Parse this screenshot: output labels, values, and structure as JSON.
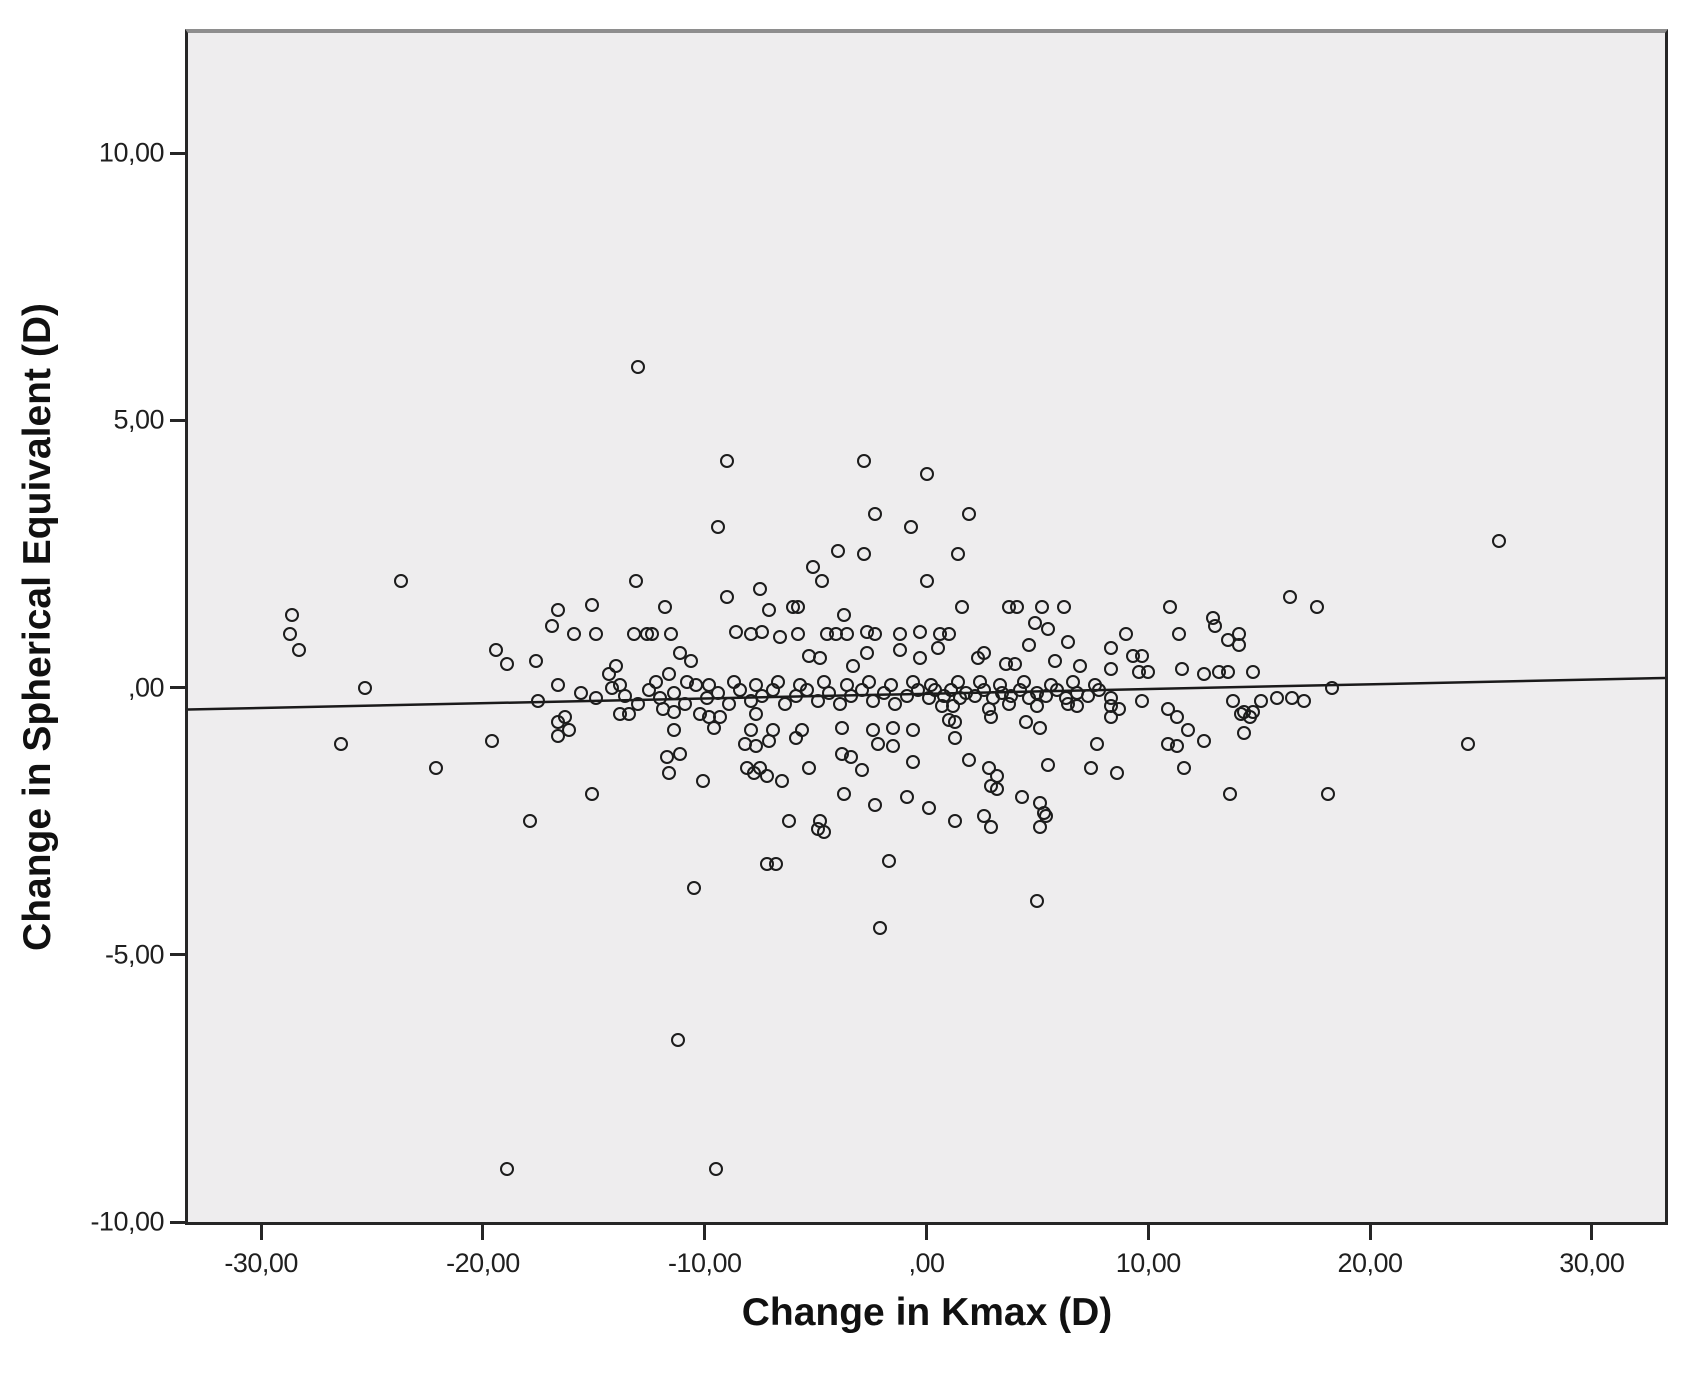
{
  "figure": {
    "plot_bg_color": "#eeedee",
    "frame_color": "#262626",
    "frame_top_color": "#8e8e8e",
    "marker_color": "#1c1c1c",
    "fit_line_color": "#1a1a1a",
    "tick_color": "#262626"
  },
  "chart_data": {
    "type": "scatter",
    "title": "",
    "xlabel": "Change in Kmax (D)",
    "ylabel": "Change in Spherical Equivalent (D)",
    "xlim": [
      -33.3,
      33.3
    ],
    "ylim": [
      -10,
      12.25
    ],
    "grid": false,
    "legend": null,
    "x_ticks": [
      {
        "value": -30,
        "label": "-30,00"
      },
      {
        "value": -20,
        "label": "-20,00"
      },
      {
        "value": -10,
        "label": "-10,00"
      },
      {
        "value": 0,
        "label": ",00"
      },
      {
        "value": 10,
        "label": "10,00"
      },
      {
        "value": 20,
        "label": "20,00"
      },
      {
        "value": 30,
        "label": "30,00"
      }
    ],
    "y_ticks": [
      {
        "value": 10,
        "label": "10,00"
      },
      {
        "value": 5,
        "label": "5,00"
      },
      {
        "value": 0,
        "label": ",00"
      },
      {
        "value": -5,
        "label": "-5,00"
      },
      {
        "value": -10,
        "label": "-10,00"
      }
    ],
    "fit_line": {
      "x1": -33.3,
      "y1": -0.41,
      "x2": 33.3,
      "y2": 0.18
    },
    "points": [
      [
        -23.7,
        2.0
      ],
      [
        -13,
        6.0
      ],
      [
        -9,
        4.25
      ],
      [
        -2.8,
        4.25
      ],
      [
        0,
        4.0
      ],
      [
        -9.4,
        3.0
      ],
      [
        -2.3,
        3.25
      ],
      [
        -0.7,
        3.0
      ],
      [
        1.9,
        3.25
      ],
      [
        -4,
        2.55
      ],
      [
        -2.8,
        2.5
      ],
      [
        1.4,
        2.5
      ],
      [
        -5.1,
        2.25
      ],
      [
        -4.7,
        2.0
      ],
      [
        0,
        2.0
      ],
      [
        -13.1,
        2.0
      ],
      [
        25.8,
        2.75
      ],
      [
        -15.1,
        1.55
      ],
      [
        -11.8,
        1.5
      ],
      [
        -9,
        1.7
      ],
      [
        -7.5,
        1.85
      ],
      [
        -7.1,
        1.45
      ],
      [
        -6,
        1.5
      ],
      [
        -5.8,
        1.5
      ],
      [
        -3.7,
        1.35
      ],
      [
        -16.6,
        1.45
      ],
      [
        -28.6,
        1.35
      ],
      [
        -16.9,
        1.15
      ],
      [
        1.6,
        1.5
      ],
      [
        3.7,
        1.5
      ],
      [
        4.1,
        1.5
      ],
      [
        5.2,
        1.5
      ],
      [
        6.2,
        1.5
      ],
      [
        11,
        1.5
      ],
      [
        12.9,
        1.3
      ],
      [
        16.4,
        1.7
      ],
      [
        17.6,
        1.5
      ],
      [
        4.9,
        1.2
      ],
      [
        5.5,
        1.1
      ],
      [
        13,
        1.15
      ],
      [
        -15.9,
        1.0
      ],
      [
        -14.9,
        1.0
      ],
      [
        -13.2,
        1.0
      ],
      [
        -12.6,
        1.0
      ],
      [
        -12.4,
        1.0
      ],
      [
        -11.5,
        1.0
      ],
      [
        -8.6,
        1.05
      ],
      [
        -7.9,
        1.0
      ],
      [
        -7.4,
        1.05
      ],
      [
        -6.6,
        0.95
      ],
      [
        -5.8,
        1.0
      ],
      [
        -4.5,
        1.0
      ],
      [
        -4.1,
        1.0
      ],
      [
        -3.6,
        1.0
      ],
      [
        -2.7,
        1.05
      ],
      [
        -2.3,
        1.0
      ],
      [
        -1.2,
        1.0
      ],
      [
        -0.3,
        1.05
      ],
      [
        0.6,
        1.0
      ],
      [
        1.0,
        1.0
      ],
      [
        9,
        1.0
      ],
      [
        11.4,
        1.0
      ],
      [
        14.1,
        1.0
      ],
      [
        -28.7,
        1.0
      ],
      [
        -28.3,
        0.7
      ],
      [
        -19.4,
        0.7
      ],
      [
        -18.9,
        0.45
      ],
      [
        -17.6,
        0.5
      ],
      [
        -11.1,
        0.65
      ],
      [
        -10.6,
        0.5
      ],
      [
        -2.7,
        0.65
      ],
      [
        -1.2,
        0.7
      ],
      [
        -0.3,
        0.55
      ],
      [
        -5.3,
        0.6
      ],
      [
        -4.8,
        0.55
      ],
      [
        -3.3,
        0.4
      ],
      [
        -14,
        0.4
      ],
      [
        -14.3,
        0.25
      ],
      [
        -11.6,
        0.25
      ],
      [
        0.5,
        0.75
      ],
      [
        2.3,
        0.55
      ],
      [
        2.6,
        0.65
      ],
      [
        4.6,
        0.8
      ],
      [
        6.4,
        0.85
      ],
      [
        8.3,
        0.75
      ],
      [
        9.3,
        0.6
      ],
      [
        9.7,
        0.6
      ],
      [
        14.1,
        0.8
      ],
      [
        13.6,
        0.9
      ],
      [
        3.6,
        0.45
      ],
      [
        4.0,
        0.45
      ],
      [
        5.8,
        0.5
      ],
      [
        6.9,
        0.4
      ],
      [
        8.3,
        0.35
      ],
      [
        9.6,
        0.3
      ],
      [
        10.0,
        0.3
      ],
      [
        11.5,
        0.35
      ],
      [
        12.5,
        0.25
      ],
      [
        13.2,
        0.3
      ],
      [
        13.6,
        0.3
      ],
      [
        14.7,
        0.3
      ],
      [
        -15.6,
        -0.1
      ],
      [
        -14.9,
        -0.2
      ],
      [
        -14.2,
        0.0
      ],
      [
        -13.6,
        -0.15
      ],
      [
        -13.0,
        -0.3
      ],
      [
        -12.5,
        -0.05
      ],
      [
        -12.0,
        -0.2
      ],
      [
        -11.4,
        -0.1
      ],
      [
        -10.9,
        -0.3
      ],
      [
        -10.4,
        0.05
      ],
      [
        -9.9,
        -0.2
      ],
      [
        -9.4,
        -0.1
      ],
      [
        -8.9,
        -0.3
      ],
      [
        -8.4,
        -0.05
      ],
      [
        -7.9,
        -0.25
      ],
      [
        -7.4,
        -0.15
      ],
      [
        -6.9,
        -0.05
      ],
      [
        -6.4,
        -0.3
      ],
      [
        -5.9,
        -0.15
      ],
      [
        -5.4,
        -0.05
      ],
      [
        -4.9,
        -0.25
      ],
      [
        -4.4,
        -0.1
      ],
      [
        -3.9,
        -0.3
      ],
      [
        -3.4,
        -0.15
      ],
      [
        -2.9,
        -0.05
      ],
      [
        -2.4,
        -0.25
      ],
      [
        -1.9,
        -0.1
      ],
      [
        -1.4,
        -0.3
      ],
      [
        -0.9,
        -0.15
      ],
      [
        -0.4,
        -0.05
      ],
      [
        0.1,
        -0.2
      ],
      [
        0.4,
        -0.05
      ],
      [
        0.8,
        -0.15
      ],
      [
        1.1,
        -0.05
      ],
      [
        1.5,
        -0.2
      ],
      [
        1.8,
        -0.1
      ],
      [
        2.2,
        -0.15
      ],
      [
        2.6,
        -0.05
      ],
      [
        3.0,
        -0.2
      ],
      [
        3.4,
        -0.1
      ],
      [
        3.8,
        -0.15
      ],
      [
        4.2,
        -0.05
      ],
      [
        4.6,
        -0.2
      ],
      [
        5.0,
        -0.1
      ],
      [
        5.4,
        -0.15
      ],
      [
        5.9,
        -0.05
      ],
      [
        6.3,
        -0.2
      ],
      [
        6.8,
        -0.1
      ],
      [
        7.3,
        -0.15
      ],
      [
        7.8,
        -0.05
      ],
      [
        8.3,
        -0.2
      ],
      [
        0.2,
        0.05
      ],
      [
        -0.6,
        0.1
      ],
      [
        1.4,
        0.1
      ],
      [
        2.4,
        0.1
      ],
      [
        3.3,
        0.05
      ],
      [
        4.4,
        0.1
      ],
      [
        5.6,
        0.05
      ],
      [
        6.6,
        0.1
      ],
      [
        7.6,
        0.05
      ],
      [
        -1.6,
        0.05
      ],
      [
        -2.6,
        0.1
      ],
      [
        -3.6,
        0.05
      ],
      [
        -4.6,
        0.1
      ],
      [
        -5.7,
        0.05
      ],
      [
        -6.7,
        0.1
      ],
      [
        -7.7,
        0.05
      ],
      [
        -8.7,
        0.1
      ],
      [
        -9.8,
        0.05
      ],
      [
        -10.8,
        0.1
      ],
      [
        -12.2,
        0.1
      ],
      [
        -13.8,
        0.05
      ],
      [
        -25.3,
        0.0
      ],
      [
        -17.5,
        -0.25
      ],
      [
        -16.3,
        -0.55
      ],
      [
        -13.8,
        -0.5
      ],
      [
        -13.4,
        -0.5
      ],
      [
        -11.9,
        -0.4
      ],
      [
        -11.4,
        -0.45
      ],
      [
        -10.2,
        -0.5
      ],
      [
        -9.8,
        -0.55
      ],
      [
        -9.3,
        -0.55
      ],
      [
        -7.7,
        -0.5
      ],
      [
        0.7,
        -0.35
      ],
      [
        1.2,
        -0.35
      ],
      [
        2.8,
        -0.4
      ],
      [
        3.7,
        -0.3
      ],
      [
        5.0,
        -0.35
      ],
      [
        6.4,
        -0.3
      ],
      [
        6.8,
        -0.35
      ],
      [
        8.3,
        -0.35
      ],
      [
        8.7,
        -0.4
      ],
      [
        9.7,
        -0.25
      ],
      [
        10.9,
        -0.4
      ],
      [
        13.8,
        -0.25
      ],
      [
        14.3,
        -0.45
      ],
      [
        14.7,
        -0.45
      ],
      [
        15.1,
        -0.25
      ],
      [
        15.8,
        -0.2
      ],
      [
        16.5,
        -0.2
      ],
      [
        18.3,
        0.0
      ],
      [
        17.0,
        -0.25
      ],
      [
        -16.6,
        0.05
      ],
      [
        -16.6,
        -0.65
      ],
      [
        1.0,
        -0.6
      ],
      [
        1.3,
        -0.65
      ],
      [
        2.9,
        -0.55
      ],
      [
        4.5,
        -0.65
      ],
      [
        8.3,
        -0.55
      ],
      [
        11.3,
        -0.55
      ],
      [
        14.2,
        -0.5
      ],
      [
        14.6,
        -0.55
      ],
      [
        -26.4,
        -1.05
      ],
      [
        -22.1,
        -1.5
      ],
      [
        -19.6,
        -1.0
      ],
      [
        -16.6,
        -0.9
      ],
      [
        -16.1,
        -0.8
      ],
      [
        -11.4,
        -0.8
      ],
      [
        -9.6,
        -0.75
      ],
      [
        -7.9,
        -0.8
      ],
      [
        -6.9,
        -0.8
      ],
      [
        -5.6,
        -0.8
      ],
      [
        -3.8,
        -0.75
      ],
      [
        -2.4,
        -0.8
      ],
      [
        -1.5,
        -0.75
      ],
      [
        -0.6,
        -0.8
      ],
      [
        -8.2,
        -1.05
      ],
      [
        -7.7,
        -1.1
      ],
      [
        -7.1,
        -1.0
      ],
      [
        -5.9,
        -0.95
      ],
      [
        -2.2,
        -1.05
      ],
      [
        -1.5,
        -1.1
      ],
      [
        1.3,
        -0.95
      ],
      [
        5.1,
        -0.75
      ],
      [
        7.7,
        -1.05
      ],
      [
        10.9,
        -1.05
      ],
      [
        11.3,
        -1.1
      ],
      [
        12.5,
        -1.0
      ],
      [
        14.3,
        -0.85
      ],
      [
        11.8,
        -0.8
      ],
      [
        24.4,
        -1.05
      ],
      [
        -11.7,
        -1.3
      ],
      [
        -11.1,
        -1.25
      ],
      [
        -11.6,
        -1.6
      ],
      [
        -8.1,
        -1.5
      ],
      [
        -7.5,
        -1.5
      ],
      [
        -3.8,
        -1.25
      ],
      [
        -3.4,
        -1.3
      ],
      [
        -0.6,
        -1.4
      ],
      [
        -10.1,
        -1.75
      ],
      [
        -7.8,
        -1.6
      ],
      [
        -7.2,
        -1.65
      ],
      [
        -6.5,
        -1.75
      ],
      [
        -5.3,
        -1.5
      ],
      [
        -2.9,
        -1.55
      ],
      [
        1.9,
        -1.35
      ],
      [
        5.5,
        -1.45
      ],
      [
        7.4,
        -1.5
      ],
      [
        8.6,
        -1.6
      ],
      [
        11.6,
        -1.5
      ],
      [
        2.8,
        -1.5
      ],
      [
        3.2,
        -1.65
      ],
      [
        2.9,
        -1.85
      ],
      [
        -15.1,
        -2.0
      ],
      [
        -17.9,
        -2.5
      ],
      [
        -3.7,
        -2.0
      ],
      [
        -2.3,
        -2.2
      ],
      [
        -0.9,
        -2.05
      ],
      [
        -6.2,
        -2.5
      ],
      [
        -4.8,
        -2.5
      ],
      [
        -4.6,
        -2.7
      ],
      [
        -4.9,
        -2.65
      ],
      [
        3.2,
        -1.9
      ],
      [
        4.3,
        -2.05
      ],
      [
        5.1,
        -2.15
      ],
      [
        5.3,
        -2.35
      ],
      [
        0.1,
        -2.25
      ],
      [
        1.3,
        -2.5
      ],
      [
        2.6,
        -2.4
      ],
      [
        2.9,
        -2.6
      ],
      [
        5.4,
        -2.4
      ],
      [
        5.1,
        -2.6
      ],
      [
        13.7,
        -2.0
      ],
      [
        18.1,
        -2.0
      ],
      [
        -7.2,
        -3.3
      ],
      [
        -6.8,
        -3.3
      ],
      [
        -1.7,
        -3.25
      ],
      [
        -10.5,
        -3.75
      ],
      [
        -2.1,
        -4.5
      ],
      [
        5.0,
        -4.0
      ],
      [
        -18.9,
        -9.0
      ],
      [
        -9.5,
        -9.0
      ],
      [
        -11.2,
        -6.6
      ]
    ]
  }
}
